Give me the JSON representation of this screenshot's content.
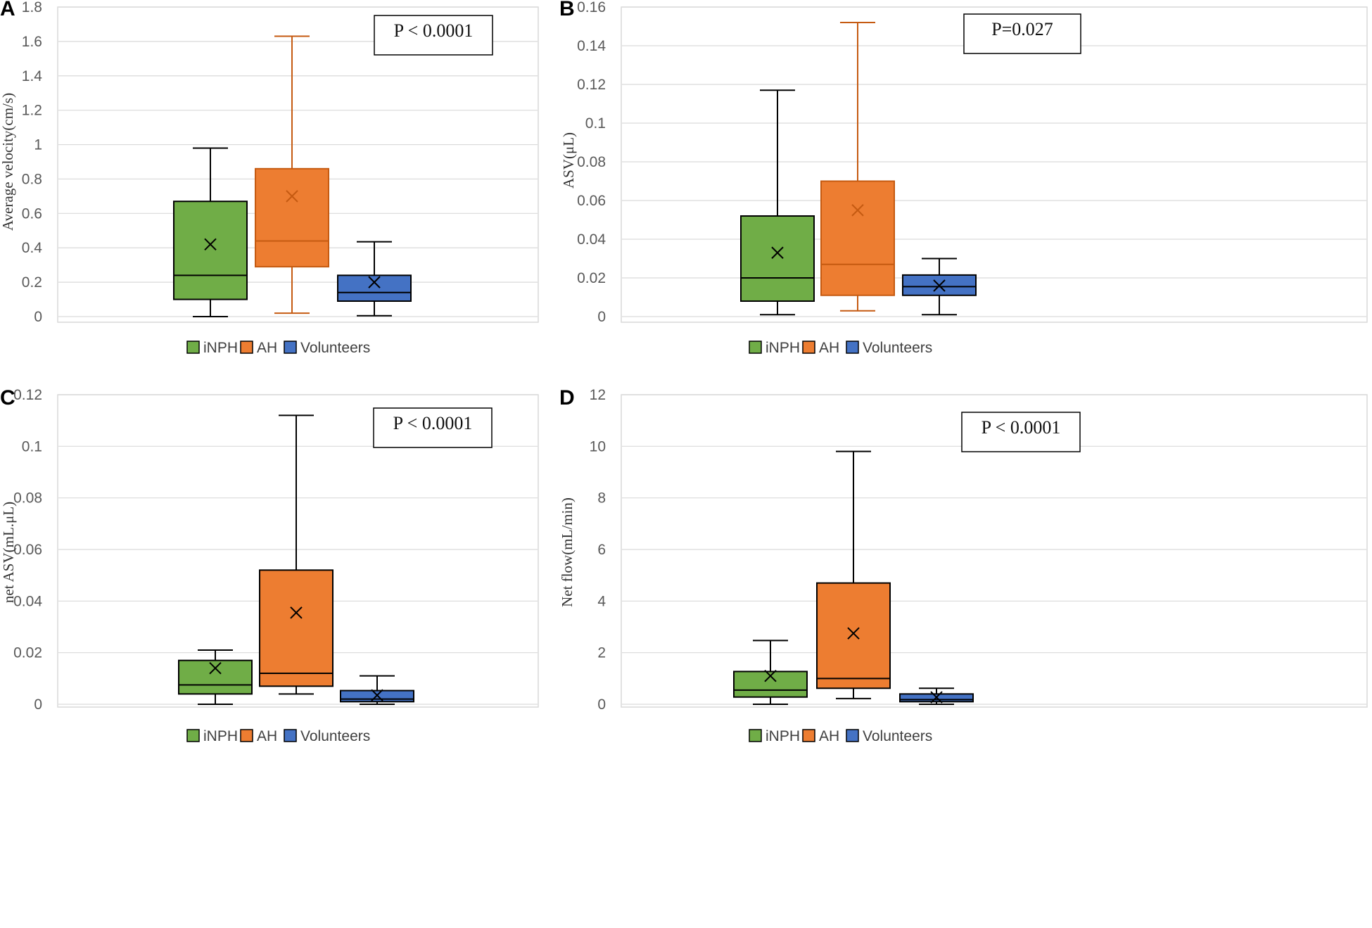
{
  "colors": {
    "iNPH": "#70ad47",
    "AH": "#ed7d31",
    "Volunteers": "#4472c4",
    "grid": "#d9d9d9",
    "frame": "#d9d9d9"
  },
  "chart_data": [
    {
      "type": "box",
      "panel": "A",
      "ylabel": "Average velocity(cm/s)",
      "ylim": [
        0,
        1.8
      ],
      "yticks": [
        0,
        0.2,
        0.4,
        0.6,
        0.8,
        1,
        1.2,
        1.4,
        1.6,
        1.8
      ],
      "ytick_labels": [
        "0",
        "0.2",
        "0.4",
        "0.6",
        "0.8",
        "1",
        "1.2",
        "1.4",
        "1.6",
        "1.8"
      ],
      "annotation": "P < 0.0001",
      "legend": [
        "iNPH",
        "AH",
        "Volunteers"
      ],
      "series": [
        {
          "name": "iNPH",
          "min": 0.0,
          "q1": 0.1,
          "median": 0.24,
          "q3": 0.67,
          "max": 0.98,
          "mean": 0.42
        },
        {
          "name": "AH",
          "min": 0.02,
          "q1": 0.29,
          "median": 0.44,
          "q3": 0.86,
          "max": 1.63,
          "mean": 0.7
        },
        {
          "name": "Volunteers",
          "min": 0.005,
          "q1": 0.09,
          "median": 0.14,
          "q3": 0.24,
          "max": 0.435,
          "mean": 0.2
        }
      ]
    },
    {
      "type": "box",
      "panel": "B",
      "ylabel": "ASV(μL)",
      "ylim": [
        0,
        0.16
      ],
      "yticks": [
        0,
        0.02,
        0.04,
        0.06,
        0.08,
        0.1,
        0.12,
        0.14,
        0.16
      ],
      "ytick_labels": [
        "0",
        "0.02",
        "0.04",
        "0.06",
        "0.08",
        "0.1",
        "0.12",
        "0.14",
        "0.16"
      ],
      "annotation": "P=0.027",
      "legend": [
        "iNPH",
        "AH",
        "Volunteers"
      ],
      "series": [
        {
          "name": "iNPH",
          "min": 0.001,
          "q1": 0.008,
          "median": 0.02,
          "q3": 0.052,
          "max": 0.117,
          "mean": 0.033
        },
        {
          "name": "AH",
          "min": 0.003,
          "q1": 0.011,
          "median": 0.027,
          "q3": 0.07,
          "max": 0.152,
          "mean": 0.055
        },
        {
          "name": "Volunteers",
          "min": 0.001,
          "q1": 0.011,
          "median": 0.0155,
          "q3": 0.0215,
          "max": 0.03,
          "mean": 0.016
        }
      ]
    },
    {
      "type": "box",
      "panel": "C",
      "ylabel": "net ASV(mL.μL)",
      "ylim": [
        0,
        0.12
      ],
      "yticks": [
        0,
        0.02,
        0.04,
        0.06,
        0.08,
        0.1,
        0.12
      ],
      "ytick_labels": [
        "0",
        "0.02",
        "0.04",
        "0.06",
        "0.08",
        "0.1",
        "0.12"
      ],
      "annotation": "P < 0.0001",
      "legend": [
        "iNPH",
        "AH",
        "Volunteers"
      ],
      "series": [
        {
          "name": "iNPH",
          "min": 0.0,
          "q1": 0.004,
          "median": 0.0075,
          "q3": 0.017,
          "max": 0.021,
          "mean": 0.014
        },
        {
          "name": "AH",
          "min": 0.004,
          "q1": 0.007,
          "median": 0.012,
          "q3": 0.052,
          "max": 0.112,
          "mean": 0.0355
        },
        {
          "name": "Volunteers",
          "min": 0.0,
          "q1": 0.001,
          "median": 0.002,
          "q3": 0.0053,
          "max": 0.011,
          "mean": 0.0035
        }
      ]
    },
    {
      "type": "box",
      "panel": "D",
      "ylabel": "Net flow(mL/min)",
      "ylim": [
        0,
        12
      ],
      "yticks": [
        0,
        2,
        4,
        6,
        8,
        10,
        12
      ],
      "ytick_labels": [
        "0",
        "2",
        "4",
        "6",
        "8",
        "10",
        "12"
      ],
      "annotation": "P < 0.0001",
      "legend": [
        "iNPH",
        "AH",
        "Volunteers"
      ],
      "series": [
        {
          "name": "iNPH",
          "min": 0.0,
          "q1": 0.28,
          "median": 0.55,
          "q3": 1.27,
          "max": 2.47,
          "mean": 1.1
        },
        {
          "name": "AH",
          "min": 0.22,
          "q1": 0.62,
          "median": 1.0,
          "q3": 4.7,
          "max": 9.8,
          "mean": 2.75
        },
        {
          "name": "Volunteers",
          "min": 0.0,
          "q1": 0.1,
          "median": 0.18,
          "q3": 0.4,
          "max": 0.62,
          "mean": 0.27
        }
      ]
    }
  ]
}
